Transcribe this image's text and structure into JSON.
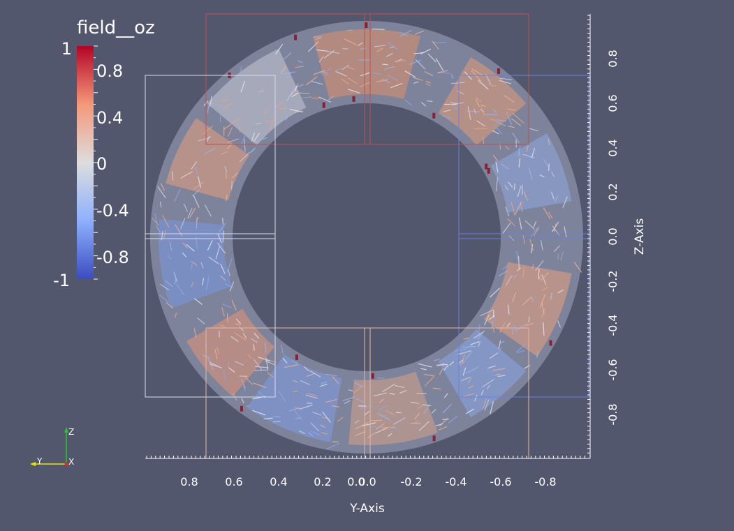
{
  "scalar_bar": {
    "title": "field__oz",
    "labels": [
      "1",
      "0.8",
      "0.4",
      "0",
      "-0.4",
      "-0.8",
      "-1"
    ],
    "range": [
      -1,
      1
    ],
    "colormap": [
      "#3b4cc0",
      "#8db0fe",
      "#dddddd",
      "#f4987a",
      "#b40426"
    ]
  },
  "axes": {
    "y_axis": {
      "title": "Y-Axis",
      "tick_labels": [
        "0.8",
        "0.6",
        "0.4",
        "0.2",
        "0.0",
        "0.0",
        "-0.2",
        "-0.4",
        "-0.6",
        "-0.8"
      ]
    },
    "z_axis": {
      "title": "Z-Axis",
      "tick_labels": [
        "0.8",
        "0.6",
        "0.4",
        "0.2",
        "0.0",
        "-0.2",
        "-0.4",
        "-0.6",
        "-0.8"
      ]
    }
  },
  "orientation_triad": {
    "z": "Z",
    "y": "Y",
    "x": "X",
    "colors": {
      "z": "#22cc22",
      "y": "#e8e800",
      "x": "#ee2222"
    }
  },
  "colors": {
    "background": "#52576e",
    "box_red": "#c0504d",
    "box_blue": "#6a82d8",
    "box_white": "#d8dcf0",
    "box_peach": "#e8b8a0"
  }
}
